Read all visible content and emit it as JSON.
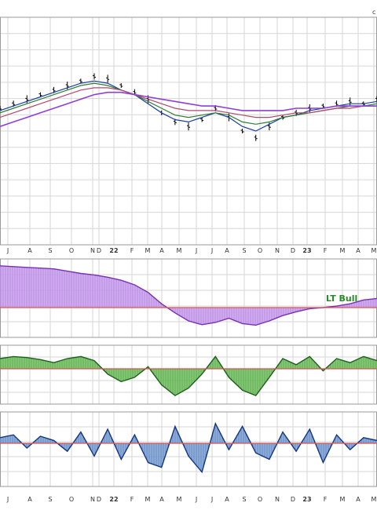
{
  "corner_label": "c",
  "chart_data": {
    "type": "line",
    "x_tick_labels": [
      "J",
      "A",
      "S",
      "O",
      "N",
      "D",
      "22",
      "F",
      "M",
      "A",
      "M",
      "J",
      "J",
      "A",
      "S",
      "O",
      "N",
      "D",
      "23",
      "F",
      "M",
      "A",
      "M"
    ],
    "bold_ticks": [
      "22",
      "23"
    ],
    "grid": true,
    "panels": [
      {
        "id": "price",
        "type": "line",
        "ylim": [
          0,
          100
        ],
        "series": [
          {
            "color": "#000000",
            "style": "ohlc",
            "values": [
              60,
              62,
              64,
              66,
              68,
              70,
              72,
              74,
              73,
              70,
              67,
              64,
              58,
              54,
              52,
              55,
              60,
              56,
              50,
              47,
              52,
              56,
              58,
              60,
              61,
              62,
              63,
              62,
              64
            ]
          },
          {
            "color": "#1a3fa0",
            "values": [
              59,
              61,
              63,
              65,
              67,
              69,
              71,
              72,
              71,
              68,
              66,
              62,
              58,
              55,
              54,
              56,
              58,
              56,
              52,
              50,
              53,
              56,
              57,
              59,
              60,
              61,
              62,
              62,
              63
            ]
          },
          {
            "color": "#2f7d2f",
            "values": [
              58,
              60,
              62,
              64,
              66,
              68,
              70,
              71,
              70,
              68,
              66,
              63,
              60,
              57,
              56,
              57,
              58,
              57,
              54,
              53,
              54,
              56,
              57,
              58,
              59,
              60,
              61,
              61,
              62
            ]
          },
          {
            "color": "#b0486f",
            "values": [
              56,
              58,
              60,
              62,
              64,
              66,
              68,
              69,
              69,
              68,
              66,
              64,
              62,
              60,
              59,
              59,
              59,
              58,
              57,
              56,
              56,
              57,
              58,
              58,
              59,
              60,
              60,
              61,
              61
            ]
          },
          {
            "color": "#8e3fd6",
            "values": [
              52,
              54,
              56,
              58,
              60,
              62,
              64,
              66,
              67,
              67,
              66,
              65,
              64,
              63,
              62,
              61,
              61,
              60,
              59,
              59,
              59,
              59,
              60,
              60,
              60,
              61,
              61,
              61,
              61
            ]
          }
        ]
      },
      {
        "id": "lt-indicator",
        "type": "area",
        "fill": "#c9a0ee",
        "line_color": "#7a2fb0",
        "zero_line_color": "#d9534f",
        "ylim": [
          -50,
          60
        ],
        "annotation": "LT Bull",
        "values": [
          55,
          54,
          53,
          52,
          51,
          48,
          45,
          43,
          40,
          36,
          30,
          20,
          5,
          -10,
          -25,
          -32,
          -28,
          -20,
          -30,
          -33,
          -25,
          -15,
          -8,
          -2,
          0,
          2,
          5,
          10,
          12
        ]
      },
      {
        "id": "mt-indicator",
        "type": "area",
        "fill": "#6dbf5a",
        "line_color": "#1d5e1d",
        "zero_line_color": "#d9534f",
        "ylim": [
          -30,
          20
        ],
        "values": [
          10,
          12,
          11,
          9,
          6,
          10,
          12,
          8,
          -5,
          -12,
          -8,
          2,
          -15,
          -25,
          -18,
          -5,
          12,
          -8,
          -20,
          -25,
          -8,
          10,
          4,
          12,
          -2,
          10,
          6,
          12,
          8
        ]
      },
      {
        "id": "st-indicator",
        "type": "area",
        "fill": "#7aa0d6",
        "line_color": "#14357e",
        "zero_line_color": "#d9534f",
        "ylim": [
          -25,
          20
        ],
        "values": [
          4,
          6,
          -3,
          5,
          2,
          -5,
          8,
          -8,
          10,
          -10,
          6,
          -12,
          -15,
          12,
          -8,
          -18,
          14,
          -4,
          12,
          -6,
          -10,
          8,
          -5,
          10,
          -12,
          6,
          -4,
          4,
          2
        ]
      }
    ]
  }
}
